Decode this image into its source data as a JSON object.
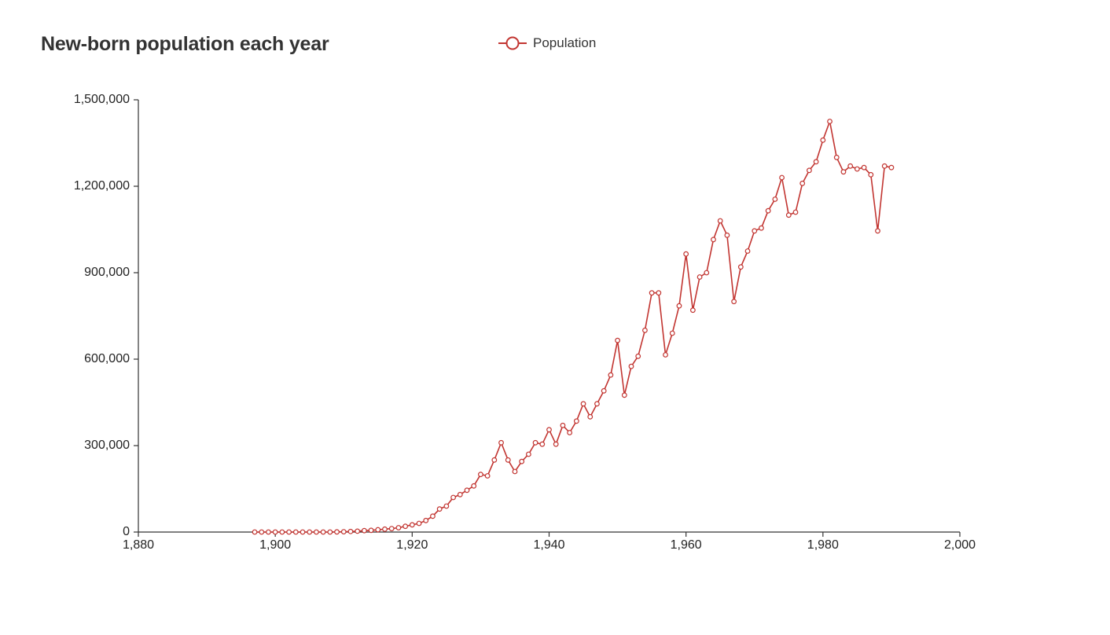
{
  "chart_data": {
    "type": "line",
    "title": "New-born population each year",
    "xlabel": "",
    "ylabel": "",
    "xlim": [
      1880,
      2000
    ],
    "ylim": [
      0,
      1500000
    ],
    "x_ticks": [
      "1,880",
      "1,900",
      "1,920",
      "1,940",
      "1,960",
      "1,980",
      "2,000"
    ],
    "y_ticks": [
      "0",
      "300,000",
      "600,000",
      "900,000",
      "1,200,000",
      "1,500,000"
    ],
    "legend_position": "top-center",
    "grid": false,
    "series": [
      {
        "name": "Population",
        "color": "#c23531",
        "marker": "circle",
        "x": [
          1897,
          1898,
          1899,
          1900,
          1901,
          1902,
          1903,
          1904,
          1905,
          1906,
          1907,
          1908,
          1909,
          1910,
          1911,
          1912,
          1913,
          1914,
          1915,
          1916,
          1917,
          1918,
          1919,
          1920,
          1921,
          1922,
          1923,
          1924,
          1925,
          1926,
          1927,
          1928,
          1929,
          1930,
          1931,
          1932,
          1933,
          1934,
          1935,
          1936,
          1937,
          1938,
          1939,
          1940,
          1941,
          1942,
          1943,
          1944,
          1945,
          1946,
          1947,
          1948,
          1949,
          1950,
          1951,
          1952,
          1953,
          1954,
          1955,
          1956,
          1957,
          1958,
          1959,
          1960,
          1961,
          1962,
          1963,
          1964,
          1965,
          1966,
          1967,
          1968,
          1969,
          1970,
          1971,
          1972,
          1973,
          1974,
          1975,
          1976,
          1977,
          1978,
          1979,
          1980,
          1981,
          1982,
          1983,
          1984,
          1985,
          1986,
          1987,
          1988,
          1989,
          1990
        ],
        "values": [
          0,
          0,
          0,
          0,
          0,
          0,
          0,
          0,
          0,
          0,
          0,
          0,
          500,
          1000,
          2000,
          3000,
          5000,
          6000,
          8000,
          10000,
          12000,
          15000,
          20000,
          25000,
          30000,
          40000,
          55000,
          80000,
          90000,
          120000,
          130000,
          145000,
          160000,
          200000,
          195000,
          250000,
          310000,
          250000,
          210000,
          245000,
          270000,
          310000,
          305000,
          355000,
          305000,
          370000,
          345000,
          385000,
          445000,
          400000,
          445000,
          490000,
          545000,
          665000,
          475000,
          575000,
          610000,
          700000,
          830000,
          830000,
          615000,
          690000,
          785000,
          965000,
          770000,
          885000,
          900000,
          1015000,
          1080000,
          1030000,
          800000,
          920000,
          975000,
          1045000,
          1055000,
          1115000,
          1155000,
          1230000,
          1100000,
          1110000,
          1210000,
          1255000,
          1285000,
          1360000,
          1425000,
          1300000,
          1250000,
          1270000,
          1260000,
          1265000,
          1240000,
          1045000,
          1270000,
          1265000
        ]
      }
    ]
  }
}
